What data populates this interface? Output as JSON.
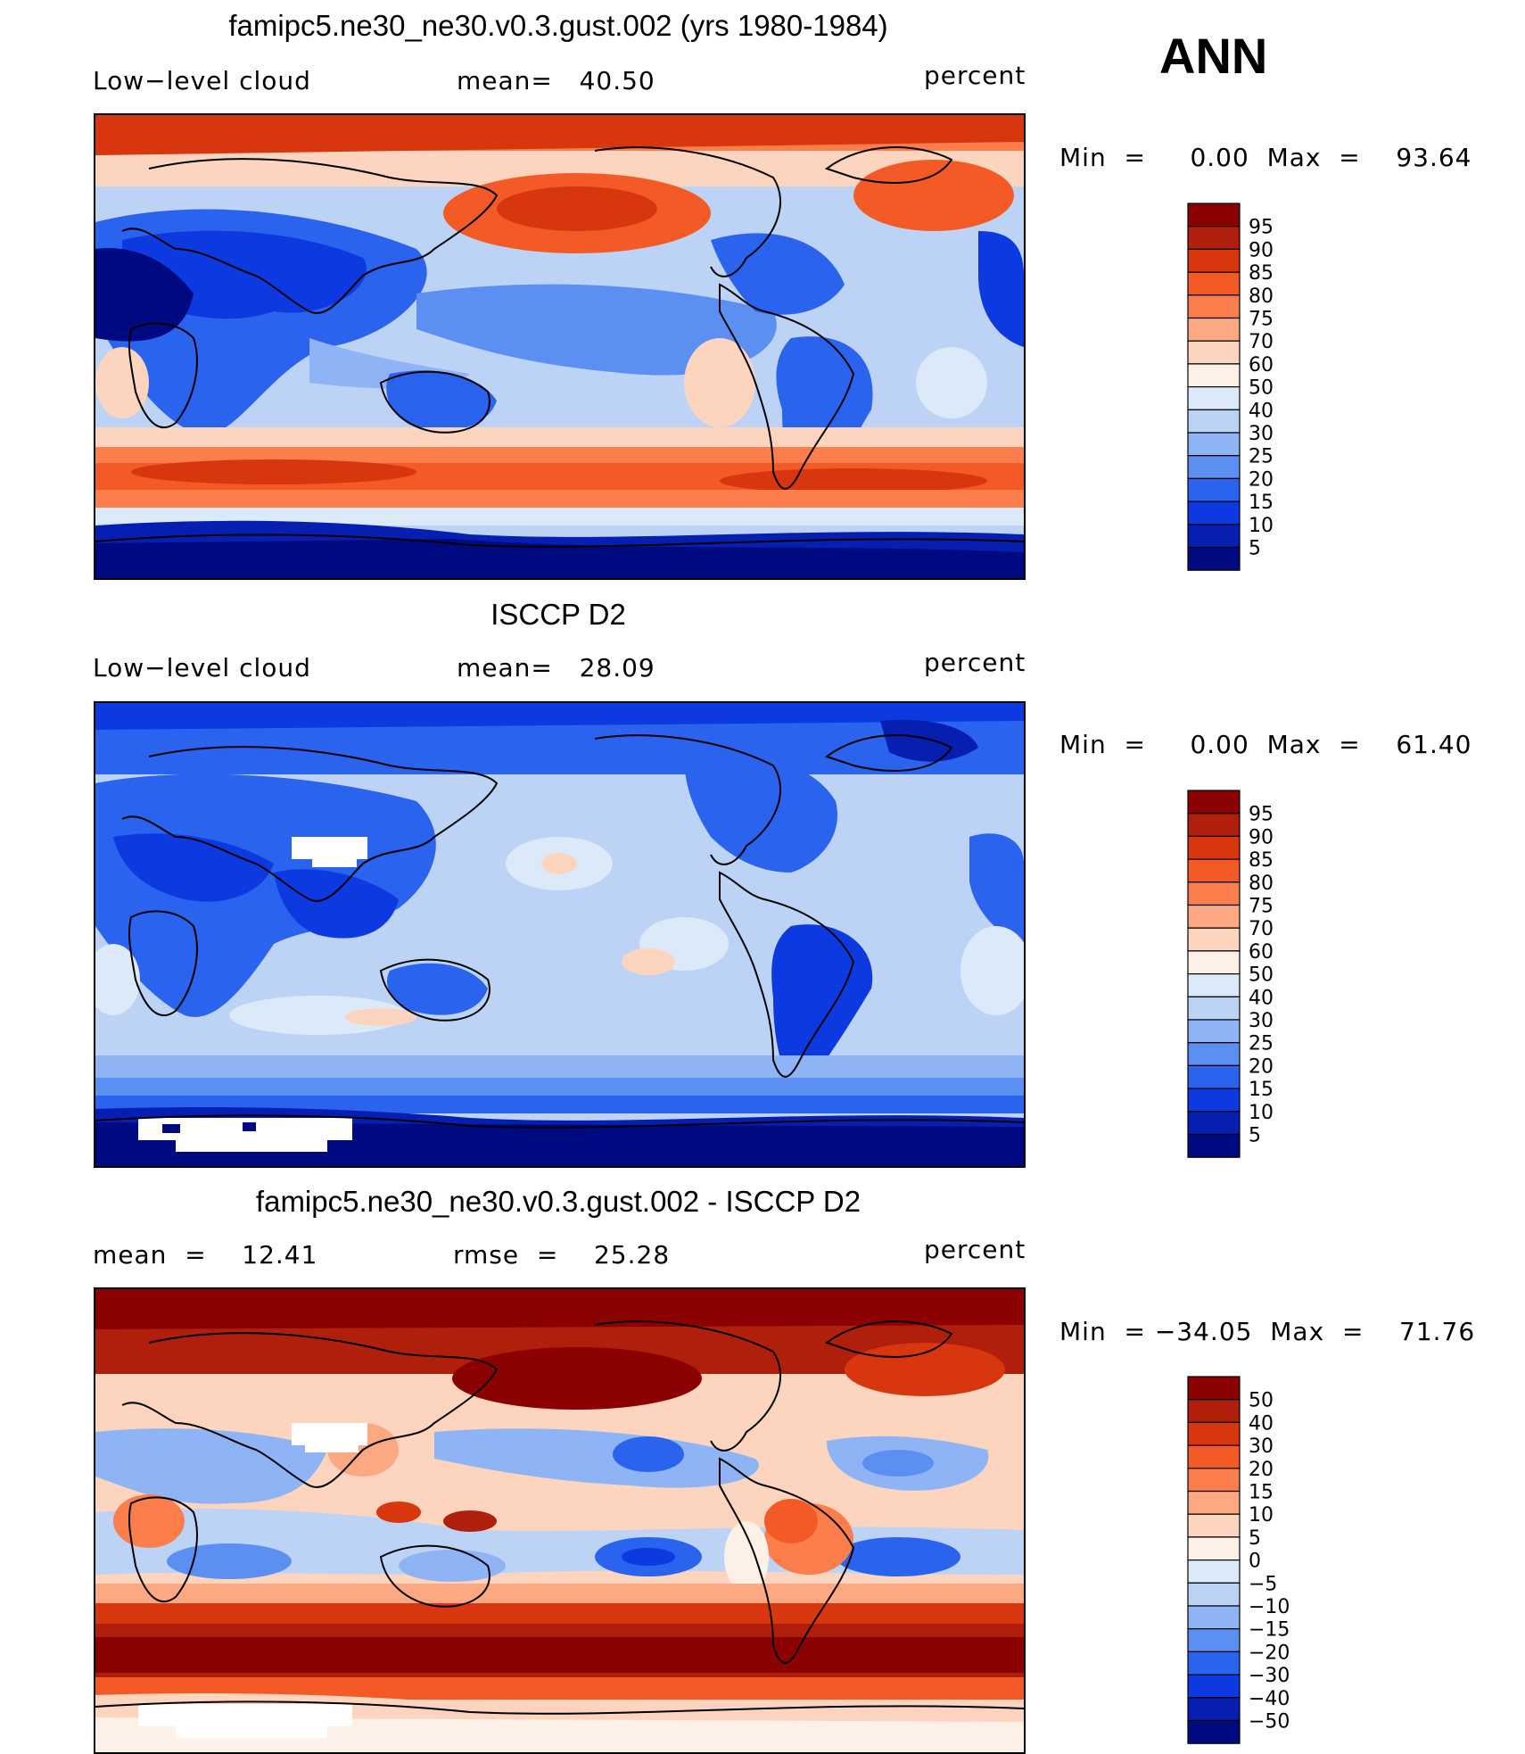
{
  "season": "ANN",
  "panels": [
    {
      "title": "famipc5.ne30_ne30.v0.3.gust.002 (yrs 1980-1984)",
      "left_label": "Low−level cloud",
      "mid_label": "mean=   40.50",
      "units": "percent",
      "minmax": "Min  =     0.00  Max  =    93.64",
      "map_theme": "model",
      "colorbar_levels": [
        "95",
        "90",
        "85",
        "80",
        "75",
        "70",
        "60",
        "50",
        "40",
        "30",
        "25",
        "20",
        "15",
        "10",
        "5"
      ]
    },
    {
      "title": "ISCCP D2",
      "left_label": "Low−level cloud",
      "mid_label": "mean=   28.09",
      "units": "percent",
      "minmax": "Min  =     0.00  Max  =    61.40",
      "map_theme": "obs",
      "colorbar_levels": [
        "95",
        "90",
        "85",
        "80",
        "75",
        "70",
        "60",
        "50",
        "40",
        "30",
        "25",
        "20",
        "15",
        "10",
        "5"
      ]
    },
    {
      "title": "famipc5.ne30_ne30.v0.3.gust.002 - ISCCP D2",
      "left_label": "mean  =    12.41",
      "mid_label": "rmse  =    25.28",
      "units": "percent",
      "minmax": "Min  = −34.05  Max  =    71.76",
      "map_theme": "diff",
      "colorbar_levels": [
        "50",
        "40",
        "30",
        "20",
        "15",
        "10",
        "5",
        "0",
        "−5",
        "−10",
        "−15",
        "−20",
        "−30",
        "−40",
        "−50"
      ]
    }
  ],
  "palette": {
    "bins_top_to_bottom": [
      "#8b0000",
      "#b01e0c",
      "#d8360e",
      "#f35a26",
      "#fb7e4c",
      "#fca882",
      "#fdd5be",
      "#fdf0e6",
      "#dbe9f8",
      "#bcd3f5",
      "#8fb4f5",
      "#5b8ff2",
      "#2a63ee",
      "#0d3ae0",
      "#061fb0",
      "#000a80"
    ]
  }
}
